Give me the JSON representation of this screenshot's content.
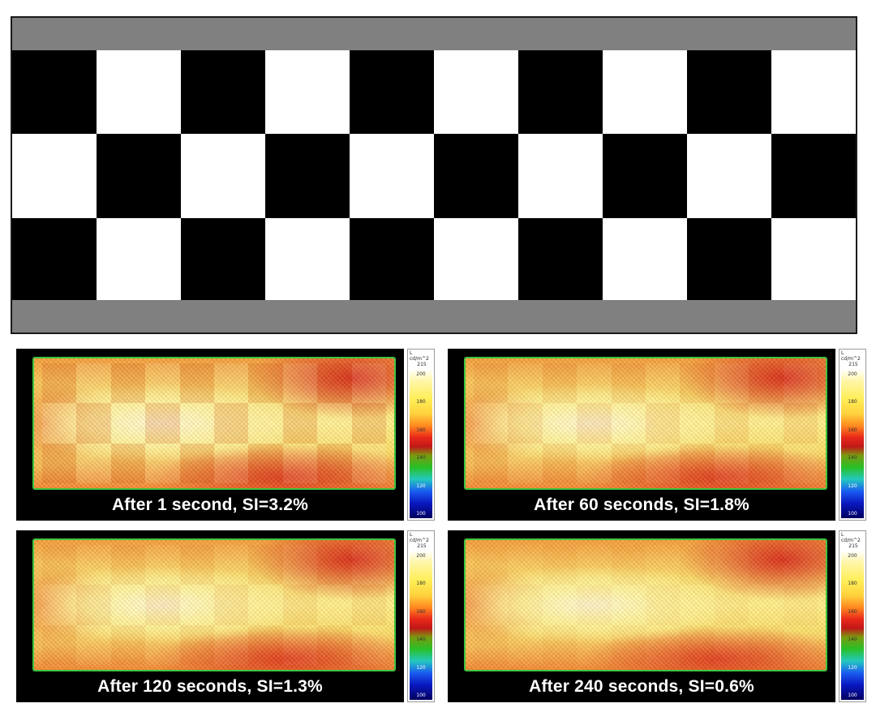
{
  "checkerboard": {
    "rows": 3,
    "cols": 10,
    "first_cell": "black",
    "colors": {
      "black": "#000000",
      "white": "#ffffff",
      "band": "#808080"
    }
  },
  "panels": [
    {
      "caption": "After 1 second, SI=3.2%"
    },
    {
      "caption": "After 60 seconds, SI=1.8%"
    },
    {
      "caption": "After 120 seconds, SI=1.3%"
    },
    {
      "caption": "After 240 seconds, SI=0.6%"
    }
  ],
  "scale": {
    "quantity": "L",
    "unit": "cd/m^2",
    "max": "215",
    "ticks": [
      "200",
      "180",
      "160",
      "140",
      "120",
      "100"
    ]
  }
}
